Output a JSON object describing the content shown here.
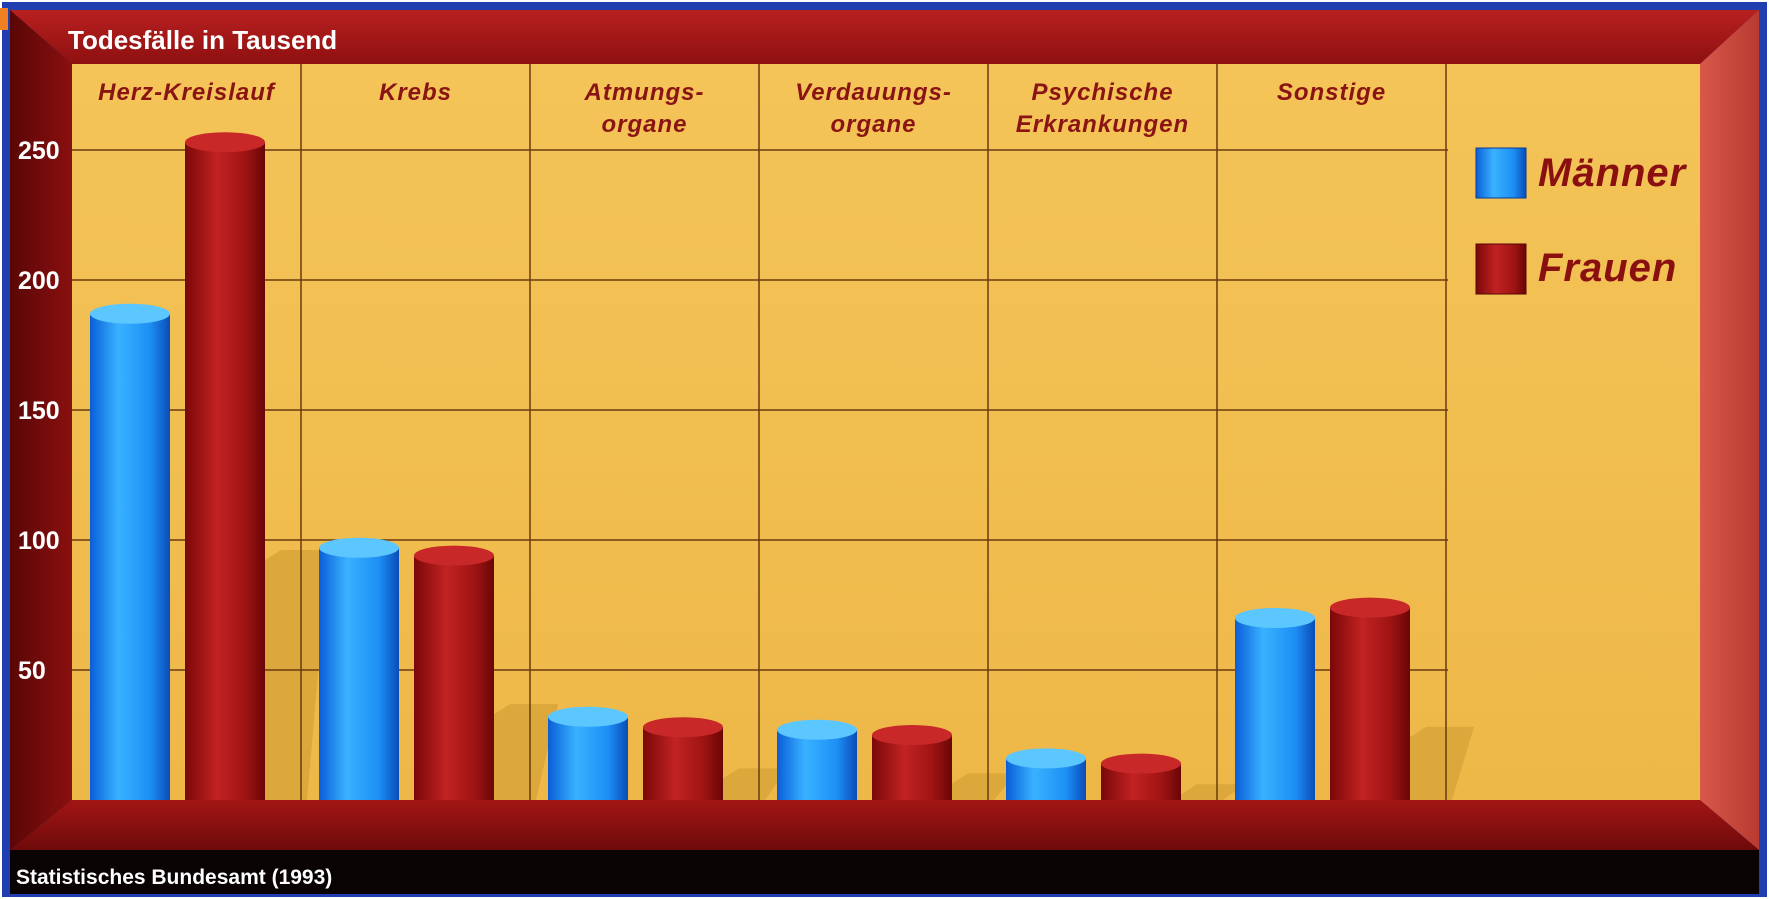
{
  "chart_data": {
    "type": "bar",
    "title": "Todesfälle in Tausend",
    "source": "Statistisches Bundesamt (1993)",
    "categories": [
      [
        "Herz-Kreislauf"
      ],
      [
        "Krebs"
      ],
      [
        "Atmungs-",
        "organe"
      ],
      [
        "Verdauungs-",
        "organe"
      ],
      [
        "Psychische",
        "Erkrankungen"
      ],
      [
        "Sonstige"
      ]
    ],
    "series": [
      {
        "name": "Männer",
        "values": [
          187,
          97,
          32,
          27,
          16,
          70
        ]
      },
      {
        "name": "Frauen",
        "values": [
          253,
          94,
          28,
          25,
          14,
          74
        ]
      }
    ],
    "y_ticks": [
      50,
      100,
      150,
      200,
      250
    ],
    "ylim": [
      0,
      250
    ],
    "grid": true,
    "legend": "right",
    "colors": {
      "maenner": "#1e90ff",
      "frauen": "#b01818",
      "panel": "#f2c050",
      "frame": "#a81818",
      "grid": "#6a3a10",
      "border": "#1f3fb0"
    }
  }
}
